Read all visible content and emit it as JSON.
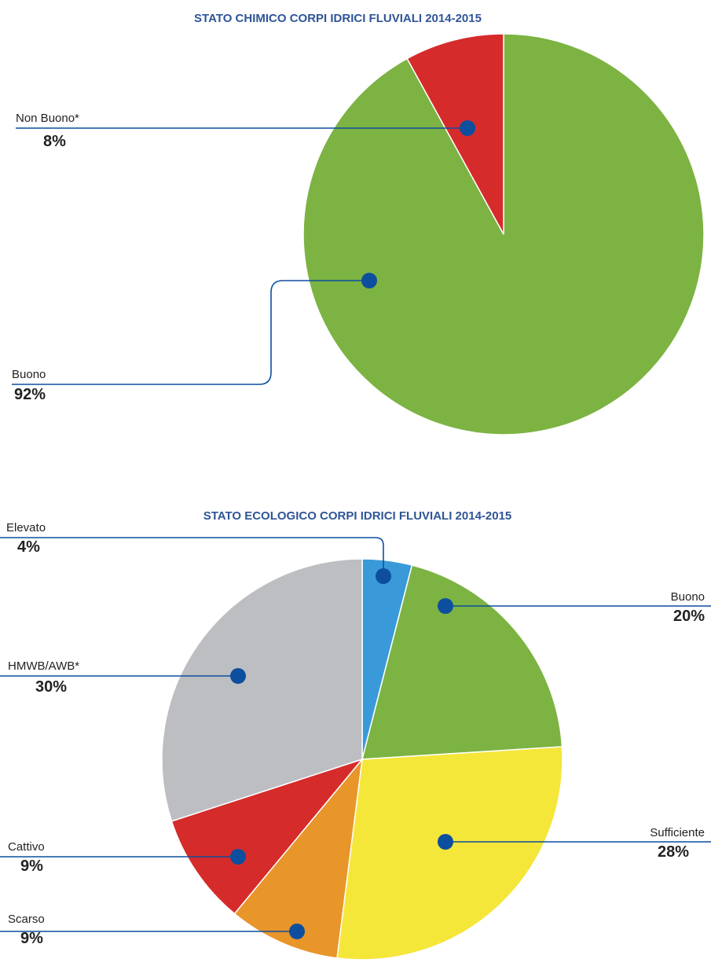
{
  "chart_data": [
    {
      "type": "pie",
      "title": "STATO CHIMICO CORPI IDRICI FLUVIALI 2014-2015",
      "categories": [
        "Buono",
        "Non Buono*"
      ],
      "values": [
        92,
        8
      ],
      "value_labels": [
        "92%",
        "8%"
      ],
      "colors": [
        "#7cb342",
        "#d62b2b"
      ]
    },
    {
      "type": "pie",
      "title": "STATO ECOLOGICO CORPI IDRICI FLUVIALI 2014-2015",
      "categories": [
        "Elevato",
        "Buono",
        "Sufficiente",
        "Scarso",
        "Cattivo",
        "HMWB/AWB*"
      ],
      "values": [
        4,
        20,
        28,
        9,
        9,
        30
      ],
      "value_labels": [
        "4%",
        "20%",
        "28%",
        "9%",
        "9%",
        "30%"
      ],
      "colors": [
        "#3a9ad9",
        "#7cb342",
        "#f5e63a",
        "#e8952a",
        "#d62b2b",
        "#bdbec2"
      ]
    }
  ]
}
